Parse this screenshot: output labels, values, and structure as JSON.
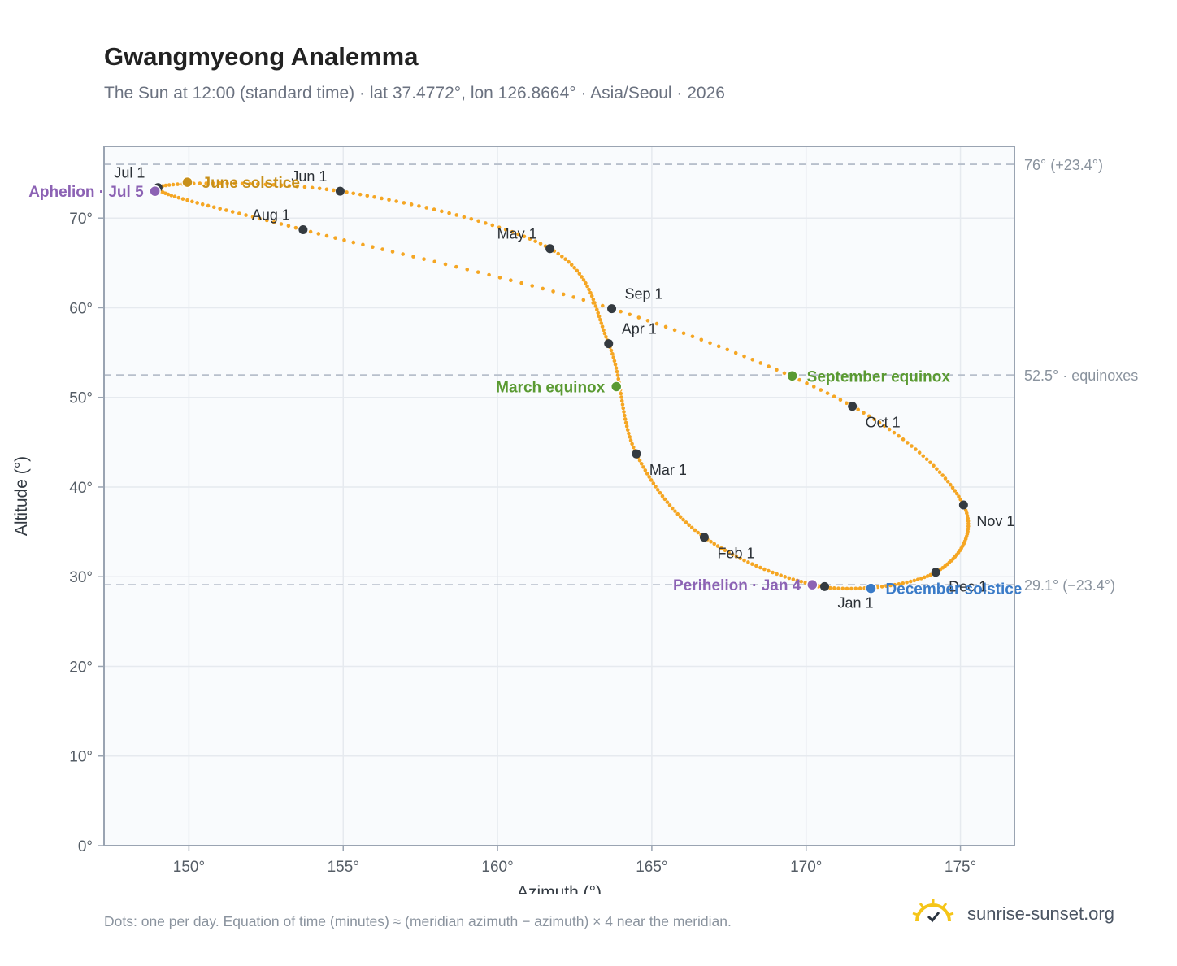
{
  "header": {
    "title": "Gwangmyeong Analemma",
    "subtitle": "The Sun at 12:00 (standard time) · lat 37.4772°, lon 126.8664° · Asia/Seoul · 2026"
  },
  "footer": {
    "note": "Dots: one per day. Equation of time (minutes) ≈ (meridian azimuth − azimuth) × 4 near the meridian.",
    "brand": "sunrise-sunset.org"
  },
  "colors": {
    "path": "#f5a623",
    "month_marker": "#343a40",
    "june_solstice": "#c8901a",
    "december_solstice": "#3a7bc8",
    "equinox": "#5a9a32",
    "apsis": "#8c62b4",
    "reference_line": "#b8c0cc",
    "grid": "#e6eaef",
    "plot_bg": "#f9fbfd",
    "axis": "#9aa4b2"
  },
  "chart_data": {
    "type": "scatter",
    "title": "Gwangmyeong Analemma",
    "xlabel": "Azimuth (°)",
    "ylabel": "Altitude (°)",
    "xlim": [
      147.25,
      176.75
    ],
    "ylim": [
      0,
      78
    ],
    "xticks": [
      150,
      155,
      160,
      165,
      170,
      175
    ],
    "xtick_labels": [
      "150°",
      "155°",
      "160°",
      "165°",
      "170°",
      "175°"
    ],
    "yticks": [
      0,
      10,
      20,
      30,
      40,
      50,
      60,
      70
    ],
    "ytick_labels": [
      "0°",
      "10°",
      "20°",
      "30°",
      "40°",
      "50°",
      "60°",
      "70°"
    ],
    "grid": true,
    "reference_lines": [
      {
        "y": 76.0,
        "label": "76° (+23.4°)"
      },
      {
        "y": 52.5,
        "label": "52.5° · equinoxes"
      },
      {
        "y": 29.1,
        "label": "29.1° (−23.4°)"
      }
    ],
    "daily_path_anchors": [
      {
        "date": "Jan 1",
        "day": 1,
        "az": 170.6,
        "alt": 28.9
      },
      {
        "date": "Feb 1",
        "day": 32,
        "az": 166.7,
        "alt": 34.4
      },
      {
        "date": "Mar 1",
        "day": 60,
        "az": 164.5,
        "alt": 43.7
      },
      {
        "date": "Apr 1",
        "day": 91,
        "az": 163.6,
        "alt": 56.0
      },
      {
        "date": "May 1",
        "day": 121,
        "az": 161.7,
        "alt": 66.6
      },
      {
        "date": "Jun 1",
        "day": 152,
        "az": 154.9,
        "alt": 73.0
      },
      {
        "date": "Jul 1",
        "day": 182,
        "az": 149.0,
        "alt": 73.4
      },
      {
        "date": "Aug 1",
        "day": 213,
        "az": 153.7,
        "alt": 68.7
      },
      {
        "date": "Sep 1",
        "day": 244,
        "az": 163.7,
        "alt": 59.9
      },
      {
        "date": "Oct 1",
        "day": 274,
        "az": 171.5,
        "alt": 49.0
      },
      {
        "date": "Nov 1",
        "day": 305,
        "az": 175.1,
        "alt": 38.0
      },
      {
        "date": "Dec 1",
        "day": 335,
        "az": 174.2,
        "alt": 30.5
      },
      {
        "date": "Dec 31",
        "day": 365,
        "az": 170.4,
        "alt": 28.9
      }
    ],
    "month_markers": [
      {
        "label": "Jan 1",
        "az": 170.6,
        "alt": 28.9,
        "label_pos": "below"
      },
      {
        "label": "Feb 1",
        "az": 166.7,
        "alt": 34.4,
        "label_pos": "below-right"
      },
      {
        "label": "Mar 1",
        "az": 164.5,
        "alt": 43.7,
        "label_pos": "below-right"
      },
      {
        "label": "Apr 1",
        "az": 163.6,
        "alt": 56.0,
        "label_pos": "above-right"
      },
      {
        "label": "May 1",
        "az": 161.7,
        "alt": 66.6,
        "label_pos": "above-left"
      },
      {
        "label": "Jun 1",
        "az": 154.9,
        "alt": 73.0,
        "label_pos": "above-left"
      },
      {
        "label": "Jul 1",
        "az": 149.0,
        "alt": 73.4,
        "label_pos": "above-left"
      },
      {
        "label": "Aug 1",
        "az": 153.7,
        "alt": 68.7,
        "label_pos": "above-left"
      },
      {
        "label": "Sep 1",
        "az": 163.7,
        "alt": 59.9,
        "label_pos": "above-right"
      },
      {
        "label": "Oct 1",
        "az": 171.5,
        "alt": 49.0,
        "label_pos": "below-right"
      },
      {
        "label": "Nov 1",
        "az": 175.1,
        "alt": 38.0,
        "label_pos": "below-right"
      },
      {
        "label": "Dec 1",
        "az": 174.2,
        "alt": 30.5,
        "label_pos": "right"
      }
    ],
    "events": [
      {
        "label": "June solstice",
        "az": 149.95,
        "alt": 74.0,
        "color_key": "june_solstice",
        "label_pos": "right"
      },
      {
        "label": "December solstice",
        "az": 172.1,
        "alt": 28.7,
        "color_key": "december_solstice",
        "label_pos": "right"
      },
      {
        "label": "March equinox",
        "az": 163.85,
        "alt": 51.2,
        "color_key": "equinox",
        "label_pos": "left"
      },
      {
        "label": "September equinox",
        "az": 169.55,
        "alt": 52.4,
        "color_key": "equinox",
        "label_pos": "right"
      },
      {
        "label": "Aphelion · Jul 5",
        "az": 148.9,
        "alt": 73.0,
        "color_key": "apsis",
        "label_pos": "left"
      },
      {
        "label": "Perihelion · Jan 4",
        "az": 170.2,
        "alt": 29.1,
        "color_key": "apsis",
        "label_pos": "left"
      }
    ]
  }
}
